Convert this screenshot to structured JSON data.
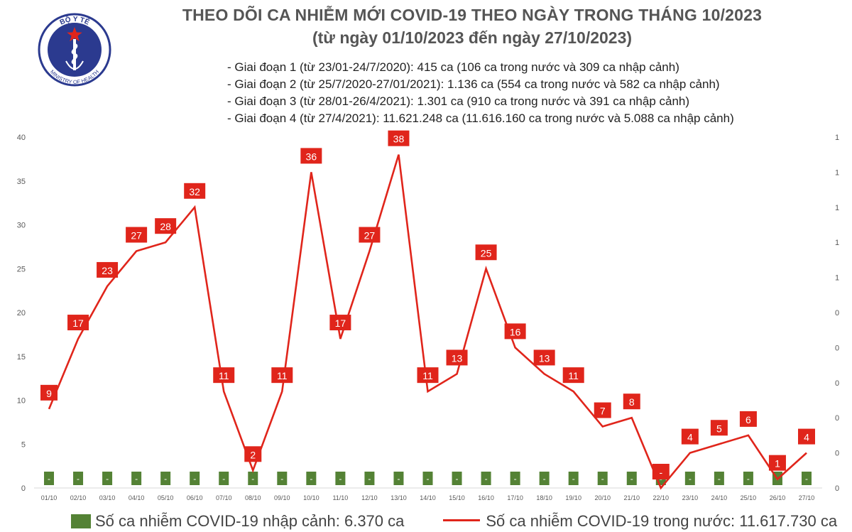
{
  "header": {
    "title_line1": "THEO DÕI CA NHIỄM MỚI COVID-19 THEO NGÀY TRONG THÁNG 10/2023",
    "title_line2": "(từ ngày 01/10/2023 đến ngày 27/10/2023)",
    "phases": [
      "- Giai đoạn 1 (từ 23/01-24/7/2020): 415 ca (106 ca trong nước và 309 ca nhập cảnh)",
      "- Giai đoạn 2 (từ 25/7/2020-27/01/2021): 1.136 ca (554 ca trong nước và 582 ca nhập cảnh)",
      "- Giai đoạn 3 (từ 28/01-26/4/2021): 1.301 ca (910 ca trong nước và 391 ca nhập cảnh)",
      "- Giai đoạn 4 (từ 27/4/2021): 11.621.248 ca (11.616.160 ca trong nước và 5.088 ca nhập cảnh)"
    ]
  },
  "logo": {
    "top_text": "BỘ Y TẾ",
    "bottom_text": "MINISTRY OF HEALTH"
  },
  "legend": {
    "imported_label": "Số ca nhiễm COVID-19 nhập cảnh: 6.370 ca",
    "domestic_label": "Số ca nhiễm COVID-19 trong nước: 11.617.730 ca"
  },
  "colors": {
    "line": "#e0251b",
    "label_box": "#e0251b",
    "bar": "#548235",
    "grid": "#d9d9d9"
  },
  "chart_data": {
    "type": "line",
    "categories": [
      "01/10",
      "02/10",
      "03/10",
      "04/10",
      "05/10",
      "06/10",
      "07/10",
      "08/10",
      "09/10",
      "10/10",
      "11/10",
      "12/10",
      "13/10",
      "14/10",
      "15/10",
      "16/10",
      "17/10",
      "18/10",
      "19/10",
      "20/10",
      "21/10",
      "22/10",
      "23/10",
      "24/10",
      "25/10",
      "26/10",
      "27/10"
    ],
    "series": [
      {
        "name": "Số ca nhiễm COVID-19 trong nước: 11.617.730 ca",
        "axis": "left",
        "values": [
          9,
          17,
          23,
          27,
          28,
          32,
          11,
          2,
          11,
          36,
          17,
          27,
          38,
          11,
          13,
          25,
          16,
          13,
          11,
          7,
          8,
          0,
          4,
          5,
          6,
          1,
          4
        ],
        "data_labels": [
          "9",
          "17",
          "23",
          "27",
          "28",
          "32",
          "11",
          "2",
          "11",
          "36",
          "17",
          "27",
          "38",
          "11",
          "13",
          "25",
          "16",
          "13",
          "11",
          "7",
          "8",
          "-",
          "4",
          "5",
          "6",
          "1",
          "4"
        ]
      },
      {
        "name": "Số ca nhiễm COVID-19 nhập cảnh: 6.370 ca",
        "type": "bar",
        "axis": "right",
        "values": [
          0,
          0,
          0,
          0,
          0,
          0,
          0,
          0,
          0,
          0,
          0,
          0,
          0,
          0,
          0,
          0,
          0,
          0,
          0,
          0,
          0,
          0,
          0,
          0,
          0,
          0,
          0
        ],
        "data_labels": [
          "-",
          "-",
          "-",
          "-",
          "-",
          "-",
          "-",
          "-",
          "-",
          "-",
          "-",
          "-",
          "-",
          "-",
          "-",
          "-",
          "-",
          "-",
          "-",
          "-",
          "-",
          "-",
          "-",
          "-",
          "-",
          "-",
          "-"
        ]
      }
    ],
    "ylim": [
      0,
      40
    ],
    "yticks": [
      "0",
      "5",
      "10",
      "15",
      "20",
      "25",
      "30",
      "35",
      "40"
    ],
    "y2_tick_labels": [
      "0",
      "0",
      "0",
      "0",
      "0",
      "0",
      "1",
      "1",
      "1",
      "1",
      "1"
    ],
    "grid": false,
    "legend_position": "bottom"
  }
}
